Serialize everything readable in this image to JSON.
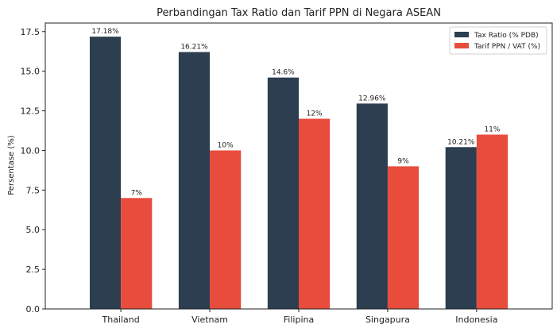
{
  "chart_data": {
    "type": "bar",
    "title": "Perbandingan Tax Ratio dan Tarif PPN di Negara ASEAN",
    "xlabel": "",
    "ylabel": "Persentase (%)",
    "ylim": [
      0,
      18.04
    ],
    "yticks": [
      0,
      2.5,
      5,
      7.5,
      10,
      12.5,
      15,
      17.5
    ],
    "ytick_labels": [
      "0.0",
      "2.5",
      "5.0",
      "7.5",
      "10.0",
      "12.5",
      "15.0",
      "17.5"
    ],
    "categories": [
      "Thailand",
      "Vietnam",
      "Filipina",
      "Singapura",
      "Indonesia"
    ],
    "series": [
      {
        "name": "Tax Ratio (% PDB)",
        "color": "#2c3e50",
        "values": [
          17.18,
          16.21,
          14.6,
          12.96,
          10.21
        ],
        "labels": [
          "17.18%",
          "16.21%",
          "14.6%",
          "12.96%",
          "10.21%"
        ]
      },
      {
        "name": "Tarif PPN / VAT (%)",
        "color": "#e74c3c",
        "values": [
          7,
          10,
          12,
          9,
          11
        ],
        "labels": [
          "7%",
          "10%",
          "12%",
          "9%",
          "11%"
        ]
      }
    ],
    "legend": "top-right",
    "grid": false
  }
}
